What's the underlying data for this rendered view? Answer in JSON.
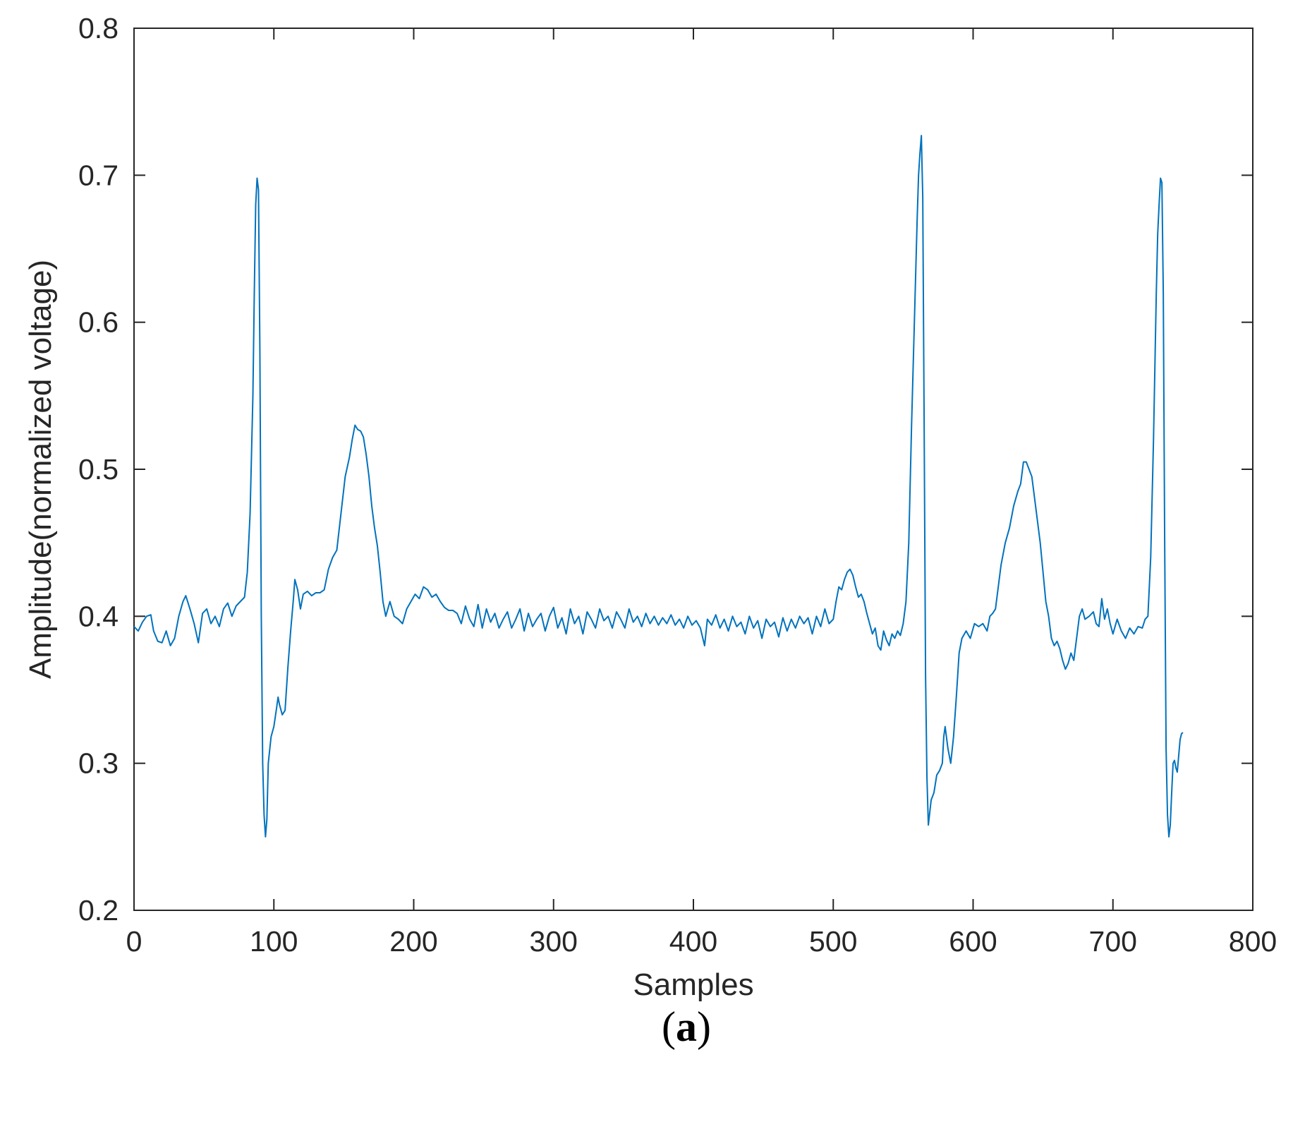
{
  "chart_data": {
    "type": "line",
    "title": "",
    "xlabel": "Samples",
    "ylabel": "Amplitude(normalized voltage)",
    "xlim": [
      0,
      800
    ],
    "ylim": [
      0.2,
      0.8
    ],
    "xticks": [
      0,
      100,
      200,
      300,
      400,
      500,
      600,
      700,
      800
    ],
    "yticks": [
      0.2,
      0.3,
      0.4,
      0.5,
      0.6,
      0.7,
      0.8
    ],
    "xtick_labels": [
      "0",
      "100",
      "200",
      "300",
      "400",
      "500",
      "600",
      "700",
      "800"
    ],
    "ytick_labels": [
      "0.2",
      "0.3",
      "0.4",
      "0.5",
      "0.6",
      "0.7",
      "0.8"
    ],
    "grid": false,
    "line_color": "#0072BD",
    "series": [
      {
        "name": "",
        "points": [
          [
            0,
            0.393
          ],
          [
            3,
            0.39
          ],
          [
            6,
            0.396
          ],
          [
            9,
            0.4
          ],
          [
            12,
            0.401
          ],
          [
            14,
            0.39
          ],
          [
            17,
            0.383
          ],
          [
            20,
            0.382
          ],
          [
            23,
            0.39
          ],
          [
            26,
            0.38
          ],
          [
            29,
            0.385
          ],
          [
            32,
            0.4
          ],
          [
            35,
            0.41
          ],
          [
            37,
            0.414
          ],
          [
            40,
            0.405
          ],
          [
            43,
            0.395
          ],
          [
            46,
            0.382
          ],
          [
            49,
            0.402
          ],
          [
            52,
            0.405
          ],
          [
            55,
            0.395
          ],
          [
            58,
            0.4
          ],
          [
            61,
            0.393
          ],
          [
            64,
            0.405
          ],
          [
            67,
            0.409
          ],
          [
            70,
            0.4
          ],
          [
            73,
            0.407
          ],
          [
            76,
            0.41
          ],
          [
            79,
            0.413
          ],
          [
            81,
            0.43
          ],
          [
            83,
            0.47
          ],
          [
            85,
            0.55
          ],
          [
            86,
            0.62
          ],
          [
            87,
            0.68
          ],
          [
            88,
            0.698
          ],
          [
            89,
            0.69
          ],
          [
            90,
            0.58
          ],
          [
            91,
            0.4
          ],
          [
            92,
            0.3
          ],
          [
            93,
            0.265
          ],
          [
            94,
            0.25
          ],
          [
            95,
            0.262
          ],
          [
            96,
            0.3
          ],
          [
            98,
            0.318
          ],
          [
            100,
            0.325
          ],
          [
            102,
            0.338
          ],
          [
            103,
            0.345
          ],
          [
            104,
            0.34
          ],
          [
            106,
            0.333
          ],
          [
            108,
            0.336
          ],
          [
            110,
            0.365
          ],
          [
            112,
            0.39
          ],
          [
            114,
            0.412
          ],
          [
            115,
            0.425
          ],
          [
            117,
            0.418
          ],
          [
            119,
            0.405
          ],
          [
            121,
            0.415
          ],
          [
            124,
            0.417
          ],
          [
            127,
            0.414
          ],
          [
            130,
            0.416
          ],
          [
            133,
            0.416
          ],
          [
            136,
            0.418
          ],
          [
            139,
            0.432
          ],
          [
            142,
            0.44
          ],
          [
            145,
            0.445
          ],
          [
            148,
            0.47
          ],
          [
            151,
            0.495
          ],
          [
            154,
            0.508
          ],
          [
            156,
            0.52
          ],
          [
            158,
            0.53
          ],
          [
            160,
            0.527
          ],
          [
            162,
            0.526
          ],
          [
            164,
            0.522
          ],
          [
            166,
            0.51
          ],
          [
            168,
            0.495
          ],
          [
            170,
            0.475
          ],
          [
            172,
            0.46
          ],
          [
            174,
            0.448
          ],
          [
            176,
            0.43
          ],
          [
            178,
            0.41
          ],
          [
            180,
            0.4
          ],
          [
            183,
            0.41
          ],
          [
            186,
            0.4
          ],
          [
            189,
            0.398
          ],
          [
            192,
            0.395
          ],
          [
            195,
            0.405
          ],
          [
            198,
            0.41
          ],
          [
            201,
            0.415
          ],
          [
            204,
            0.412
          ],
          [
            207,
            0.42
          ],
          [
            210,
            0.418
          ],
          [
            213,
            0.413
          ],
          [
            216,
            0.415
          ],
          [
            219,
            0.41
          ],
          [
            222,
            0.406
          ],
          [
            225,
            0.404
          ],
          [
            228,
            0.404
          ],
          [
            231,
            0.402
          ],
          [
            234,
            0.395
          ],
          [
            237,
            0.407
          ],
          [
            240,
            0.398
          ],
          [
            243,
            0.393
          ],
          [
            246,
            0.408
          ],
          [
            249,
            0.392
          ],
          [
            252,
            0.405
          ],
          [
            255,
            0.396
          ],
          [
            258,
            0.402
          ],
          [
            261,
            0.392
          ],
          [
            264,
            0.398
          ],
          [
            267,
            0.403
          ],
          [
            270,
            0.392
          ],
          [
            273,
            0.398
          ],
          [
            276,
            0.405
          ],
          [
            279,
            0.39
          ],
          [
            282,
            0.402
          ],
          [
            285,
            0.393
          ],
          [
            288,
            0.398
          ],
          [
            291,
            0.402
          ],
          [
            294,
            0.39
          ],
          [
            297,
            0.4
          ],
          [
            300,
            0.406
          ],
          [
            303,
            0.392
          ],
          [
            306,
            0.399
          ],
          [
            309,
            0.388
          ],
          [
            312,
            0.405
          ],
          [
            315,
            0.395
          ],
          [
            318,
            0.4
          ],
          [
            321,
            0.388
          ],
          [
            324,
            0.403
          ],
          [
            327,
            0.398
          ],
          [
            330,
            0.392
          ],
          [
            333,
            0.405
          ],
          [
            336,
            0.397
          ],
          [
            339,
            0.4
          ],
          [
            342,
            0.392
          ],
          [
            345,
            0.403
          ],
          [
            348,
            0.398
          ],
          [
            351,
            0.392
          ],
          [
            354,
            0.405
          ],
          [
            357,
            0.396
          ],
          [
            360,
            0.4
          ],
          [
            363,
            0.393
          ],
          [
            366,
            0.402
          ],
          [
            369,
            0.395
          ],
          [
            372,
            0.4
          ],
          [
            375,
            0.394
          ],
          [
            378,
            0.399
          ],
          [
            381,
            0.395
          ],
          [
            384,
            0.401
          ],
          [
            387,
            0.394
          ],
          [
            390,
            0.398
          ],
          [
            393,
            0.392
          ],
          [
            396,
            0.4
          ],
          [
            399,
            0.394
          ],
          [
            402,
            0.397
          ],
          [
            405,
            0.392
          ],
          [
            408,
            0.38
          ],
          [
            410,
            0.398
          ],
          [
            413,
            0.394
          ],
          [
            416,
            0.401
          ],
          [
            419,
            0.392
          ],
          [
            422,
            0.398
          ],
          [
            425,
            0.39
          ],
          [
            428,
            0.4
          ],
          [
            431,
            0.393
          ],
          [
            434,
            0.396
          ],
          [
            437,
            0.388
          ],
          [
            440,
            0.4
          ],
          [
            443,
            0.392
          ],
          [
            446,
            0.397
          ],
          [
            449,
            0.385
          ],
          [
            452,
            0.398
          ],
          [
            455,
            0.393
          ],
          [
            458,
            0.396
          ],
          [
            461,
            0.386
          ],
          [
            464,
            0.399
          ],
          [
            467,
            0.39
          ],
          [
            470,
            0.398
          ],
          [
            473,
            0.392
          ],
          [
            476,
            0.4
          ],
          [
            479,
            0.395
          ],
          [
            482,
            0.399
          ],
          [
            485,
            0.388
          ],
          [
            488,
            0.4
          ],
          [
            491,
            0.393
          ],
          [
            494,
            0.405
          ],
          [
            497,
            0.395
          ],
          [
            500,
            0.398
          ],
          [
            502,
            0.41
          ],
          [
            504,
            0.42
          ],
          [
            506,
            0.418
          ],
          [
            508,
            0.425
          ],
          [
            510,
            0.43
          ],
          [
            512,
            0.432
          ],
          [
            514,
            0.428
          ],
          [
            516,
            0.42
          ],
          [
            518,
            0.413
          ],
          [
            520,
            0.415
          ],
          [
            522,
            0.41
          ],
          [
            524,
            0.402
          ],
          [
            526,
            0.395
          ],
          [
            528,
            0.388
          ],
          [
            530,
            0.392
          ],
          [
            532,
            0.38
          ],
          [
            534,
            0.377
          ],
          [
            536,
            0.39
          ],
          [
            538,
            0.384
          ],
          [
            540,
            0.38
          ],
          [
            542,
            0.388
          ],
          [
            544,
            0.385
          ],
          [
            546,
            0.39
          ],
          [
            548,
            0.387
          ],
          [
            550,
            0.395
          ],
          [
            552,
            0.41
          ],
          [
            554,
            0.45
          ],
          [
            556,
            0.53
          ],
          [
            558,
            0.6
          ],
          [
            560,
            0.67
          ],
          [
            561,
            0.7
          ],
          [
            562,
            0.715
          ],
          [
            563,
            0.727
          ],
          [
            564,
            0.685
          ],
          [
            565,
            0.53
          ],
          [
            566,
            0.36
          ],
          [
            567,
            0.29
          ],
          [
            568,
            0.258
          ],
          [
            570,
            0.275
          ],
          [
            572,
            0.28
          ],
          [
            574,
            0.292
          ],
          [
            576,
            0.295
          ],
          [
            578,
            0.3
          ],
          [
            579,
            0.318
          ],
          [
            580,
            0.325
          ],
          [
            582,
            0.31
          ],
          [
            584,
            0.3
          ],
          [
            586,
            0.318
          ],
          [
            588,
            0.345
          ],
          [
            590,
            0.375
          ],
          [
            592,
            0.385
          ],
          [
            595,
            0.39
          ],
          [
            598,
            0.385
          ],
          [
            601,
            0.395
          ],
          [
            604,
            0.393
          ],
          [
            607,
            0.395
          ],
          [
            610,
            0.39
          ],
          [
            612,
            0.4
          ],
          [
            614,
            0.402
          ],
          [
            616,
            0.405
          ],
          [
            618,
            0.42
          ],
          [
            620,
            0.435
          ],
          [
            623,
            0.45
          ],
          [
            626,
            0.46
          ],
          [
            629,
            0.475
          ],
          [
            632,
            0.485
          ],
          [
            634,
            0.49
          ],
          [
            636,
            0.505
          ],
          [
            638,
            0.505
          ],
          [
            640,
            0.5
          ],
          [
            642,
            0.495
          ],
          [
            644,
            0.48
          ],
          [
            646,
            0.465
          ],
          [
            648,
            0.45
          ],
          [
            650,
            0.43
          ],
          [
            652,
            0.41
          ],
          [
            654,
            0.4
          ],
          [
            656,
            0.385
          ],
          [
            658,
            0.38
          ],
          [
            660,
            0.383
          ],
          [
            662,
            0.378
          ],
          [
            664,
            0.37
          ],
          [
            666,
            0.364
          ],
          [
            668,
            0.368
          ],
          [
            670,
            0.375
          ],
          [
            672,
            0.37
          ],
          [
            674,
            0.385
          ],
          [
            676,
            0.4
          ],
          [
            678,
            0.405
          ],
          [
            680,
            0.398
          ],
          [
            683,
            0.4
          ],
          [
            686,
            0.403
          ],
          [
            688,
            0.395
          ],
          [
            690,
            0.393
          ],
          [
            692,
            0.412
          ],
          [
            694,
            0.398
          ],
          [
            696,
            0.405
          ],
          [
            698,
            0.395
          ],
          [
            700,
            0.388
          ],
          [
            703,
            0.398
          ],
          [
            706,
            0.39
          ],
          [
            709,
            0.385
          ],
          [
            712,
            0.392
          ],
          [
            715,
            0.388
          ],
          [
            718,
            0.393
          ],
          [
            721,
            0.392
          ],
          [
            723,
            0.398
          ],
          [
            725,
            0.4
          ],
          [
            727,
            0.44
          ],
          [
            729,
            0.52
          ],
          [
            731,
            0.62
          ],
          [
            732,
            0.66
          ],
          [
            733,
            0.68
          ],
          [
            734,
            0.698
          ],
          [
            735,
            0.695
          ],
          [
            736,
            0.62
          ],
          [
            737,
            0.45
          ],
          [
            738,
            0.31
          ],
          [
            739,
            0.265
          ],
          [
            740,
            0.25
          ],
          [
            741,
            0.258
          ],
          [
            742,
            0.28
          ],
          [
            743,
            0.3
          ],
          [
            744,
            0.302
          ],
          [
            745,
            0.297
          ],
          [
            746,
            0.294
          ],
          [
            747,
            0.305
          ],
          [
            748,
            0.316
          ],
          [
            749,
            0.32
          ],
          [
            750,
            0.321
          ]
        ]
      }
    ]
  },
  "caption": {
    "open": "(",
    "letter": "a",
    "close": ")"
  }
}
